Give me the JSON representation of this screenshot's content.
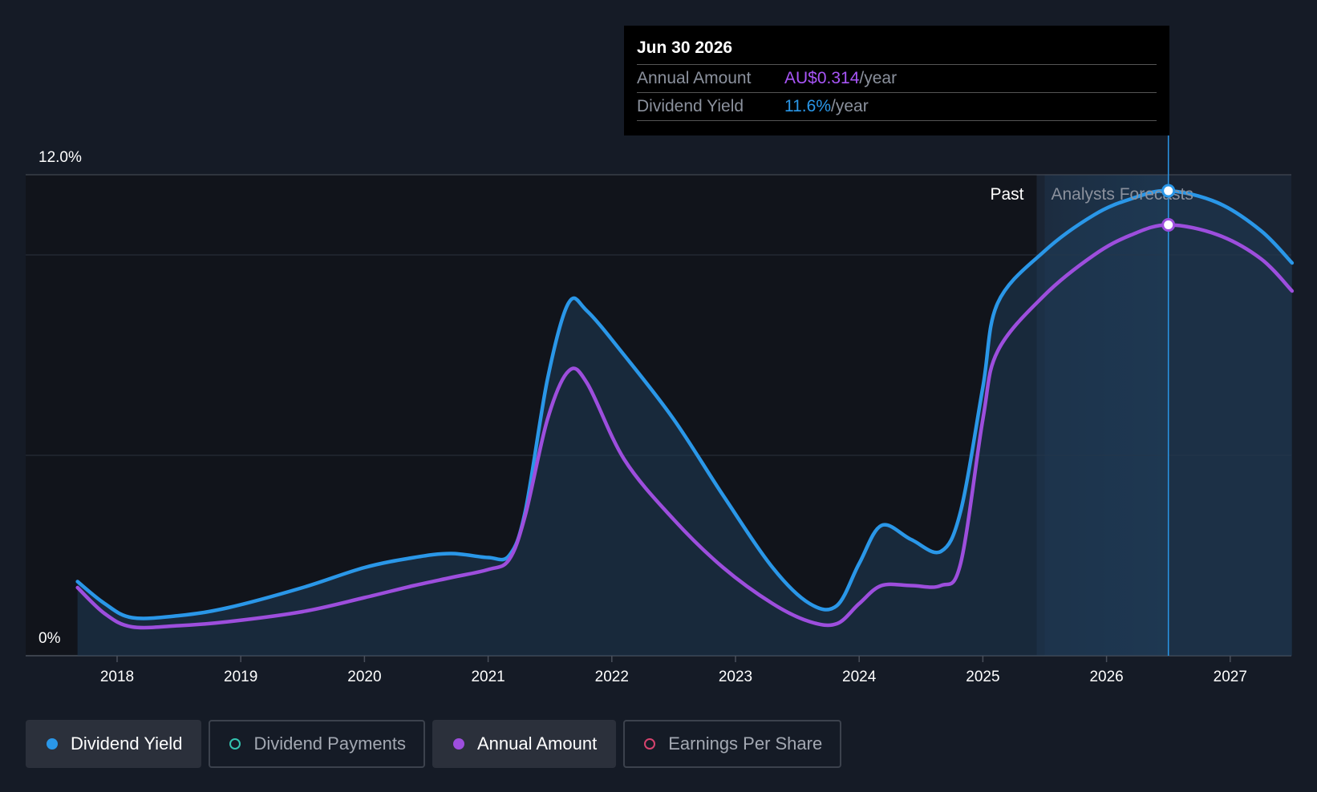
{
  "chart_data": {
    "type": "line",
    "x_axis": {
      "ticks": [
        "2018",
        "2019",
        "2020",
        "2021",
        "2022",
        "2023",
        "2024",
        "2025",
        "2026",
        "2027"
      ],
      "range": [
        2017.45,
        2027.5
      ]
    },
    "y_axis": {
      "range": [
        0,
        12
      ],
      "tick_labels": [
        "0%",
        "12.0%"
      ],
      "gridlines": [
        0,
        5,
        10,
        12
      ]
    },
    "regions": {
      "past_label": "Past",
      "forecast_label": "Analysts Forecasts",
      "forecast_start": 2025.5
    },
    "series": [
      {
        "name": "Dividend Yield",
        "color": "#2a97e8",
        "points": [
          [
            2017.68,
            1.85
          ],
          [
            2017.9,
            1.3
          ],
          [
            2018.12,
            0.95
          ],
          [
            2018.5,
            1.0
          ],
          [
            2018.9,
            1.2
          ],
          [
            2019.5,
            1.7
          ],
          [
            2020.0,
            2.2
          ],
          [
            2020.4,
            2.45
          ],
          [
            2020.7,
            2.55
          ],
          [
            2021.0,
            2.45
          ],
          [
            2021.17,
            2.5
          ],
          [
            2021.3,
            3.6
          ],
          [
            2021.48,
            6.9
          ],
          [
            2021.65,
            8.8
          ],
          [
            2021.8,
            8.6
          ],
          [
            2022.1,
            7.5
          ],
          [
            2022.5,
            5.9
          ],
          [
            2022.9,
            4.0
          ],
          [
            2023.3,
            2.2
          ],
          [
            2023.6,
            1.3
          ],
          [
            2023.82,
            1.25
          ],
          [
            2024.0,
            2.3
          ],
          [
            2024.18,
            3.25
          ],
          [
            2024.42,
            2.9
          ],
          [
            2024.66,
            2.6
          ],
          [
            2024.82,
            3.6
          ],
          [
            2025.0,
            6.7
          ],
          [
            2025.12,
            8.8
          ],
          [
            2025.5,
            10.1
          ],
          [
            2025.9,
            11.0
          ],
          [
            2026.2,
            11.4
          ],
          [
            2026.5,
            11.6
          ],
          [
            2026.9,
            11.3
          ],
          [
            2027.25,
            10.6
          ],
          [
            2027.5,
            9.8
          ]
        ]
      },
      {
        "name": "Annual Amount",
        "color": "#9d4edd",
        "points": [
          [
            2017.68,
            1.7
          ],
          [
            2017.9,
            1.05
          ],
          [
            2018.12,
            0.72
          ],
          [
            2018.5,
            0.75
          ],
          [
            2018.9,
            0.85
          ],
          [
            2019.5,
            1.1
          ],
          [
            2020.0,
            1.45
          ],
          [
            2020.4,
            1.75
          ],
          [
            2020.7,
            1.95
          ],
          [
            2021.0,
            2.15
          ],
          [
            2021.17,
            2.4
          ],
          [
            2021.3,
            3.5
          ],
          [
            2021.48,
            5.9
          ],
          [
            2021.65,
            7.1
          ],
          [
            2021.8,
            6.8
          ],
          [
            2022.1,
            4.9
          ],
          [
            2022.5,
            3.4
          ],
          [
            2022.9,
            2.2
          ],
          [
            2023.3,
            1.3
          ],
          [
            2023.6,
            0.85
          ],
          [
            2023.82,
            0.8
          ],
          [
            2024.0,
            1.3
          ],
          [
            2024.18,
            1.75
          ],
          [
            2024.42,
            1.75
          ],
          [
            2024.66,
            1.75
          ],
          [
            2024.82,
            2.3
          ],
          [
            2025.0,
            5.9
          ],
          [
            2025.12,
            7.6
          ],
          [
            2025.5,
            9.0
          ],
          [
            2025.9,
            10.0
          ],
          [
            2026.2,
            10.5
          ],
          [
            2026.5,
            10.75
          ],
          [
            2026.9,
            10.5
          ],
          [
            2027.25,
            9.9
          ],
          [
            2027.5,
            9.1
          ]
        ]
      }
    ],
    "tooltip": {
      "date": "Jun 30 2026",
      "x": 2026.5,
      "rows": [
        {
          "label": "Annual Amount",
          "value": "AU$0.314",
          "unit": "/year",
          "color": "#a855f7"
        },
        {
          "label": "Dividend Yield",
          "value": "11.6%",
          "unit": "/year",
          "color": "#2a97e8"
        }
      ]
    },
    "legend": [
      {
        "label": "Dividend Yield",
        "color": "#2a97e8",
        "active": true
      },
      {
        "label": "Dividend Payments",
        "color": "#34c3b0",
        "active": false
      },
      {
        "label": "Annual Amount",
        "color": "#9d4edd",
        "active": true
      },
      {
        "label": "Earnings Per Share",
        "color": "#d6436e",
        "active": false
      }
    ]
  }
}
